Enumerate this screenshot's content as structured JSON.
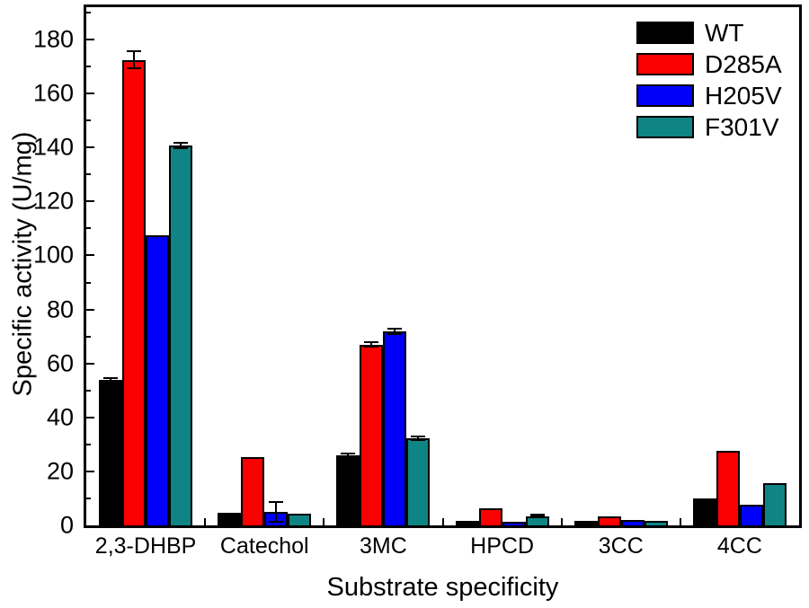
{
  "chart_data": {
    "type": "bar",
    "title": "",
    "xlabel": "Substrate specificity",
    "ylabel": "Specific activity (U/mg)",
    "categories": [
      "2,3-DHBP",
      "Catechol",
      "3MC",
      "HPCD",
      "3CC",
      "4CC"
    ],
    "series": [
      {
        "name": "WT",
        "color": "#000000",
        "values": [
          54.0,
          4.5,
          26.0,
          1.5,
          1.7,
          10.0
        ],
        "errors": [
          1.0,
          0,
          0.8,
          0,
          0,
          0
        ]
      },
      {
        "name": "D285A",
        "color": "#fa0000",
        "values": [
          172.5,
          25.3,
          67.0,
          6.3,
          3.3,
          27.5
        ],
        "errors": [
          3.5,
          0,
          1.2,
          0,
          0,
          0
        ]
      },
      {
        "name": "H205V",
        "color": "#0000fa",
        "values": [
          107.5,
          5.0,
          72.0,
          1.2,
          2.0,
          7.5
        ],
        "errors": [
          0,
          4.0,
          1.3,
          0,
          0,
          0
        ]
      },
      {
        "name": "F301V",
        "color": "#0e8484",
        "values": [
          140.7,
          4.3,
          32.3,
          3.4,
          1.5,
          15.7
        ],
        "errors": [
          1.3,
          0,
          1.0,
          0.5,
          0,
          0
        ]
      }
    ],
    "ylim": [
      0,
      192
    ],
    "yticks": [
      0,
      20,
      40,
      60,
      80,
      100,
      120,
      140,
      160,
      180
    ],
    "minor_tick_step": 10,
    "legend_position": "top-right",
    "grid": false,
    "axis_color": "#000000",
    "background_color": "#ffffff"
  }
}
